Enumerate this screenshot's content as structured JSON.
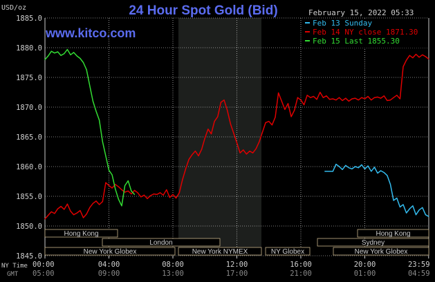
{
  "title": "24 Hour Spot Gold (Bid)",
  "watermark": "www.kitco.com",
  "units_label": "USD/oz",
  "timestamp": "February 15, 2022 05:33",
  "colors": {
    "background": "#000000",
    "title": "#5b6cf0",
    "watermark": "#5b6cf0",
    "grid": "#ffffff",
    "london_shade": "#1d1f1d",
    "text": "#cfcfcf",
    "sunday_series": "#33bbee",
    "ny_close_series": "#e00000",
    "last_series": "#33dd33",
    "session_box": "#c8b48a"
  },
  "legend": {
    "items": [
      {
        "label": "Feb 13 Sunday",
        "color": "#33bbee"
      },
      {
        "label": "Feb 14 NY close 1871.30",
        "color": "#e00000"
      },
      {
        "label": "Feb 15 Last 1855.30",
        "color": "#33dd33"
      }
    ]
  },
  "x_axis": {
    "ny_time_label": "NY Time",
    "gmt_label": "GMT",
    "ny_ticks": [
      "00:00",
      "04:00",
      "08:00",
      "12:00",
      "16:00",
      "20:00",
      "23:59"
    ],
    "gmt_ticks": [
      "05:00",
      "09:00",
      "13:00",
      "17:00",
      "21:00",
      "01:00",
      "04:59"
    ]
  },
  "sessions": [
    {
      "label": "Hong Kong"
    },
    {
      "label": "London"
    },
    {
      "label": "New York Globex"
    },
    {
      "label": "New York NYMEX"
    },
    {
      "label": "NY Globex"
    },
    {
      "label": "Hong Kong"
    },
    {
      "label": "Sydney"
    },
    {
      "label": "New York Globex"
    }
  ],
  "chart_data": {
    "type": "line",
    "title": "24 Hour Spot Gold (Bid)",
    "ylabel": "USD/oz",
    "ylim": [
      1845,
      1885
    ],
    "yticks": [
      1845,
      1850,
      1855,
      1860,
      1865,
      1870,
      1875,
      1880,
      1885
    ],
    "ytick_labels": [
      "1845.0",
      "1850.0",
      "1855.0",
      "1860.0",
      "1865.0",
      "1870.0",
      "1875.0",
      "1880.0",
      "1885.0"
    ],
    "xlim_hours": [
      0,
      24
    ],
    "x_unit": "hours (NY time)",
    "grid": true,
    "legend_position": "top-right",
    "series": [
      {
        "name": "Feb 13 Sunday",
        "color": "#33bbee",
        "x": [
          17.5,
          18.0,
          18.2,
          18.4,
          18.6,
          18.8,
          19.0,
          19.2,
          19.4,
          19.6,
          19.8,
          20.0,
          20.2,
          20.4,
          20.6,
          20.8,
          21.0,
          21.2,
          21.4,
          21.6,
          21.8,
          22.0,
          22.2,
          22.4,
          22.6,
          22.8,
          23.0,
          23.2,
          23.4,
          23.6,
          23.8,
          23.99
        ],
        "y": [
          1859.2,
          1859.2,
          1860.4,
          1860.0,
          1859.5,
          1860.2,
          1859.8,
          1859.6,
          1860.0,
          1859.8,
          1860.3,
          1859.6,
          1860.1,
          1859.2,
          1859.9,
          1858.9,
          1859.3,
          1859.0,
          1858.5,
          1857.0,
          1854.3,
          1854.7,
          1853.2,
          1853.6,
          1852.2,
          1852.9,
          1853.4,
          1851.9,
          1852.7,
          1853.1,
          1851.9,
          1851.6
        ]
      },
      {
        "name": "Feb 14 NY close 1871.30",
        "color": "#e00000",
        "x": [
          0.0,
          0.2,
          0.4,
          0.6,
          0.8,
          1.0,
          1.2,
          1.4,
          1.6,
          1.8,
          2.0,
          2.2,
          2.4,
          2.6,
          2.8,
          3.0,
          3.2,
          3.4,
          3.6,
          3.8,
          4.0,
          4.2,
          4.4,
          4.6,
          4.8,
          5.0,
          5.2,
          5.4,
          5.6,
          5.8,
          6.0,
          6.2,
          6.4,
          6.6,
          6.8,
          7.0,
          7.2,
          7.4,
          7.6,
          7.8,
          8.0,
          8.2,
          8.4,
          8.6,
          8.8,
          9.0,
          9.2,
          9.4,
          9.6,
          9.8,
          10.0,
          10.2,
          10.4,
          10.6,
          10.8,
          11.0,
          11.2,
          11.4,
          11.6,
          11.8,
          12.0,
          12.2,
          12.4,
          12.6,
          12.8,
          13.0,
          13.2,
          13.4,
          13.6,
          13.8,
          14.0,
          14.2,
          14.4,
          14.6,
          14.8,
          15.0,
          15.2,
          15.4,
          15.6,
          15.8,
          16.0,
          16.2,
          16.4,
          16.6,
          16.8,
          17.0,
          17.2,
          17.4,
          17.6,
          17.8,
          18.0,
          18.2,
          18.4,
          18.6,
          18.8,
          19.0,
          19.2,
          19.4,
          19.6,
          19.8,
          20.0,
          20.2,
          20.4,
          20.6,
          20.8,
          21.0,
          21.2,
          21.4,
          21.6,
          21.8,
          22.0,
          22.2,
          22.4,
          22.6,
          22.8,
          23.0,
          23.2,
          23.4,
          23.6,
          23.8,
          23.99
        ],
        "y": [
          1851.2,
          1851.8,
          1852.4,
          1852.1,
          1852.9,
          1853.3,
          1852.8,
          1853.7,
          1852.5,
          1851.9,
          1852.2,
          1852.6,
          1851.4,
          1852.0,
          1853.1,
          1853.8,
          1854.2,
          1853.6,
          1854.1,
          1857.3,
          1856.8,
          1856.4,
          1857.0,
          1856.6,
          1856.1,
          1855.7,
          1855.9,
          1855.4,
          1856.0,
          1855.6,
          1854.9,
          1855.2,
          1854.6,
          1855.1,
          1855.4,
          1855.3,
          1855.6,
          1855.2,
          1856.1,
          1854.8,
          1855.3,
          1854.7,
          1855.6,
          1857.8,
          1859.6,
          1861.2,
          1862.0,
          1862.6,
          1861.8,
          1862.9,
          1864.8,
          1866.3,
          1865.5,
          1867.6,
          1868.4,
          1870.8,
          1871.2,
          1869.5,
          1867.2,
          1865.6,
          1864.0,
          1862.3,
          1862.8,
          1862.1,
          1862.6,
          1862.3,
          1863.0,
          1864.2,
          1865.8,
          1867.4,
          1867.6,
          1867.0,
          1868.3,
          1872.4,
          1871.0,
          1869.6,
          1870.6,
          1868.4,
          1869.5,
          1871.6,
          1871.2,
          1870.4,
          1872.0,
          1871.6,
          1871.8,
          1871.3,
          1872.5,
          1871.6,
          1871.9,
          1871.3,
          1871.4,
          1871.2,
          1871.6,
          1871.1,
          1871.5,
          1871.0,
          1871.4,
          1871.5,
          1871.2,
          1871.6,
          1871.4,
          1871.8,
          1871.2,
          1871.6,
          1871.7,
          1871.5,
          1871.9,
          1871.1,
          1871.2,
          1871.6,
          1872.0,
          1871.4,
          1876.8,
          1877.9,
          1878.7,
          1878.3,
          1878.9,
          1878.4,
          1878.8,
          1878.5,
          1878.1
        ]
      },
      {
        "name": "Feb 15 Last 1855.30",
        "color": "#33dd33",
        "x": [
          0.0,
          0.2,
          0.4,
          0.6,
          0.8,
          1.0,
          1.2,
          1.4,
          1.6,
          1.8,
          2.0,
          2.2,
          2.4,
          2.6,
          2.8,
          3.0,
          3.2,
          3.4,
          3.6,
          3.8,
          4.0,
          4.2,
          4.4,
          4.6,
          4.8,
          5.0,
          5.2,
          5.4,
          5.6
        ],
        "y": [
          1878.0,
          1878.6,
          1879.4,
          1879.1,
          1879.3,
          1878.7,
          1879.0,
          1879.7,
          1878.8,
          1879.2,
          1878.6,
          1878.2,
          1877.5,
          1876.3,
          1873.6,
          1871.0,
          1869.3,
          1867.8,
          1864.2,
          1861.8,
          1859.4,
          1858.6,
          1856.2,
          1854.5,
          1853.4,
          1856.8,
          1857.6,
          1855.9,
          1855.3
        ]
      }
    ]
  }
}
